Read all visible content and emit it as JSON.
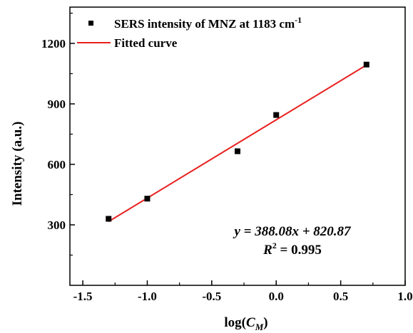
{
  "chart_data": {
    "type": "scatter",
    "xlabel_prefix": "log(",
    "xlabel_var": "C",
    "xlabel_sub": "M",
    "xlabel_suffix": ")",
    "ylabel": "Intensity (a.u.)",
    "xlim": [
      -1.6,
      1.0
    ],
    "ylim": [
      0,
      1380
    ],
    "x_ticks": [
      -1.5,
      -1.0,
      -0.5,
      0.0,
      0.5,
      1.0
    ],
    "x_tick_labels": [
      "-1.5",
      "-1.0",
      "-0.5",
      "0.0",
      "0.5",
      "1.0"
    ],
    "y_ticks": [
      300,
      600,
      900,
      1200
    ],
    "y_tick_labels": [
      "300",
      "600",
      "900",
      "1200"
    ],
    "series": [
      {
        "name": "SERS intensity of MNZ at 1183 cm",
        "name_sup": "-1",
        "marker": "square",
        "color": "#000000",
        "x": [
          -1.3,
          -1.0,
          -0.3,
          0.0,
          0.7
        ],
        "y": [
          330,
          430,
          665,
          845,
          1095
        ]
      },
      {
        "name": "Fitted curve",
        "type": "line",
        "color": "#e8211f",
        "x": [
          -1.3,
          0.7
        ],
        "y": [
          316.37,
          1092.53
        ]
      }
    ],
    "fit": {
      "slope": 388.08,
      "intercept": 820.87,
      "r2": 0.995
    },
    "annotations": {
      "equation": "y = 388.08x + 820.87",
      "r2_symbol": "R",
      "r2_power": "2",
      "r2_value": " = 0.995"
    },
    "legend_position": "top-left",
    "grid": false
  }
}
